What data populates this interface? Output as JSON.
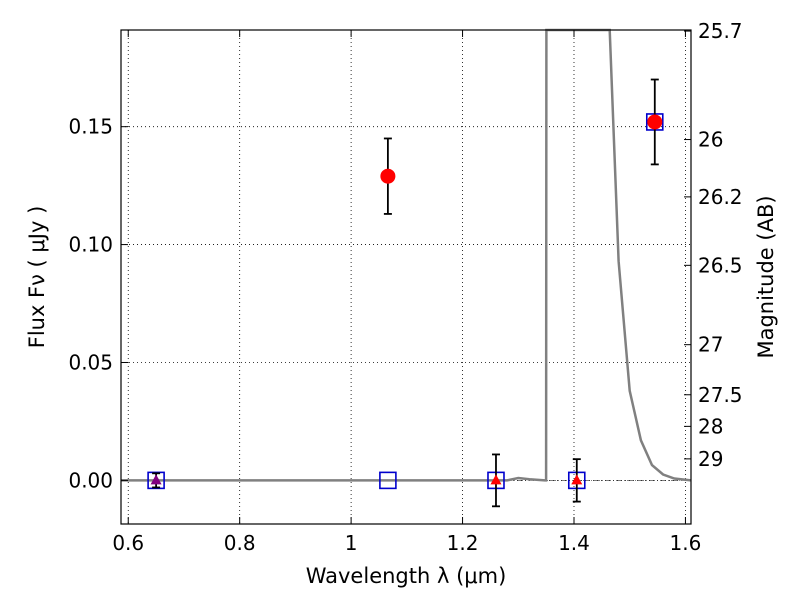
{
  "chart_data": {
    "type": "scatter",
    "xlabel": "Wavelength  λ (μm)",
    "ylabel_left": "Flux  Fν  ( μJy )",
    "ylabel_right": "Magnitude (AB)",
    "xlim": [
      0.587,
      1.61
    ],
    "ylim": [
      -0.0185,
      0.191
    ],
    "grid": true,
    "x_ticks": [
      {
        "value": 0.6,
        "label": "0.6"
      },
      {
        "value": 0.8,
        "label": "0.8"
      },
      {
        "value": 1.0,
        "label": "1"
      },
      {
        "value": 1.2,
        "label": "1.2"
      },
      {
        "value": 1.4,
        "label": "1.4"
      },
      {
        "value": 1.6,
        "label": "1.6"
      }
    ],
    "y_ticks": [
      {
        "value": 0.0,
        "label": "0.00"
      },
      {
        "value": 0.05,
        "label": "0.05"
      },
      {
        "value": 0.1,
        "label": "0.10"
      },
      {
        "value": 0.15,
        "label": "0.15"
      }
    ],
    "mag_ticks": [
      {
        "mag": 25.7,
        "label": "25.7"
      },
      {
        "mag": 26,
        "label": "26"
      },
      {
        "mag": 26.2,
        "label": "26.2"
      },
      {
        "mag": 26.5,
        "label": "26.5"
      },
      {
        "mag": 27,
        "label": "27"
      },
      {
        "mag": 27.5,
        "label": "27.5"
      },
      {
        "mag": 28,
        "label": "28"
      },
      {
        "mag": 29,
        "label": "29"
      }
    ],
    "detections": [
      {
        "x": 1.066,
        "y": 0.129,
        "err": 0.016
      },
      {
        "x": 1.545,
        "y": 0.152,
        "err": 0.018
      }
    ],
    "upper_limits": [
      {
        "x": 0.65,
        "y": 0.0,
        "err": 0.003,
        "color": "#800080"
      },
      {
        "x": 1.26,
        "y": 0.0,
        "err": 0.011,
        "color": "#ff0000"
      },
      {
        "x": 1.405,
        "y": 0.0,
        "err": 0.009,
        "color": "#ff0000"
      }
    ],
    "model_fluxes": [
      {
        "x": 0.65,
        "y": 0.0
      },
      {
        "x": 1.066,
        "y": 0.0
      },
      {
        "x": 1.26,
        "y": 0.0
      },
      {
        "x": 1.405,
        "y": 0.0
      },
      {
        "x": 1.545,
        "y": 0.152
      }
    ],
    "template_spectrum": [
      [
        0.587,
        0.0
      ],
      [
        1.28,
        0.0
      ],
      [
        1.3,
        0.001
      ],
      [
        1.32,
        0.0005
      ],
      [
        1.348,
        0.0
      ],
      [
        1.35,
        0.0
      ],
      [
        1.3505,
        0.191
      ],
      [
        1.464,
        0.191
      ],
      [
        1.48,
        0.093
      ],
      [
        1.5,
        0.038
      ],
      [
        1.52,
        0.017
      ],
      [
        1.54,
        0.0065
      ],
      [
        1.56,
        0.0025
      ],
      [
        1.58,
        0.0008
      ],
      [
        1.6,
        0.0003
      ],
      [
        1.61,
        0.0
      ]
    ],
    "colors": {
      "detection": "#ff0000",
      "model_marker": "#0000cc",
      "spectrum": "#808080",
      "errorbar": "#000000"
    }
  }
}
